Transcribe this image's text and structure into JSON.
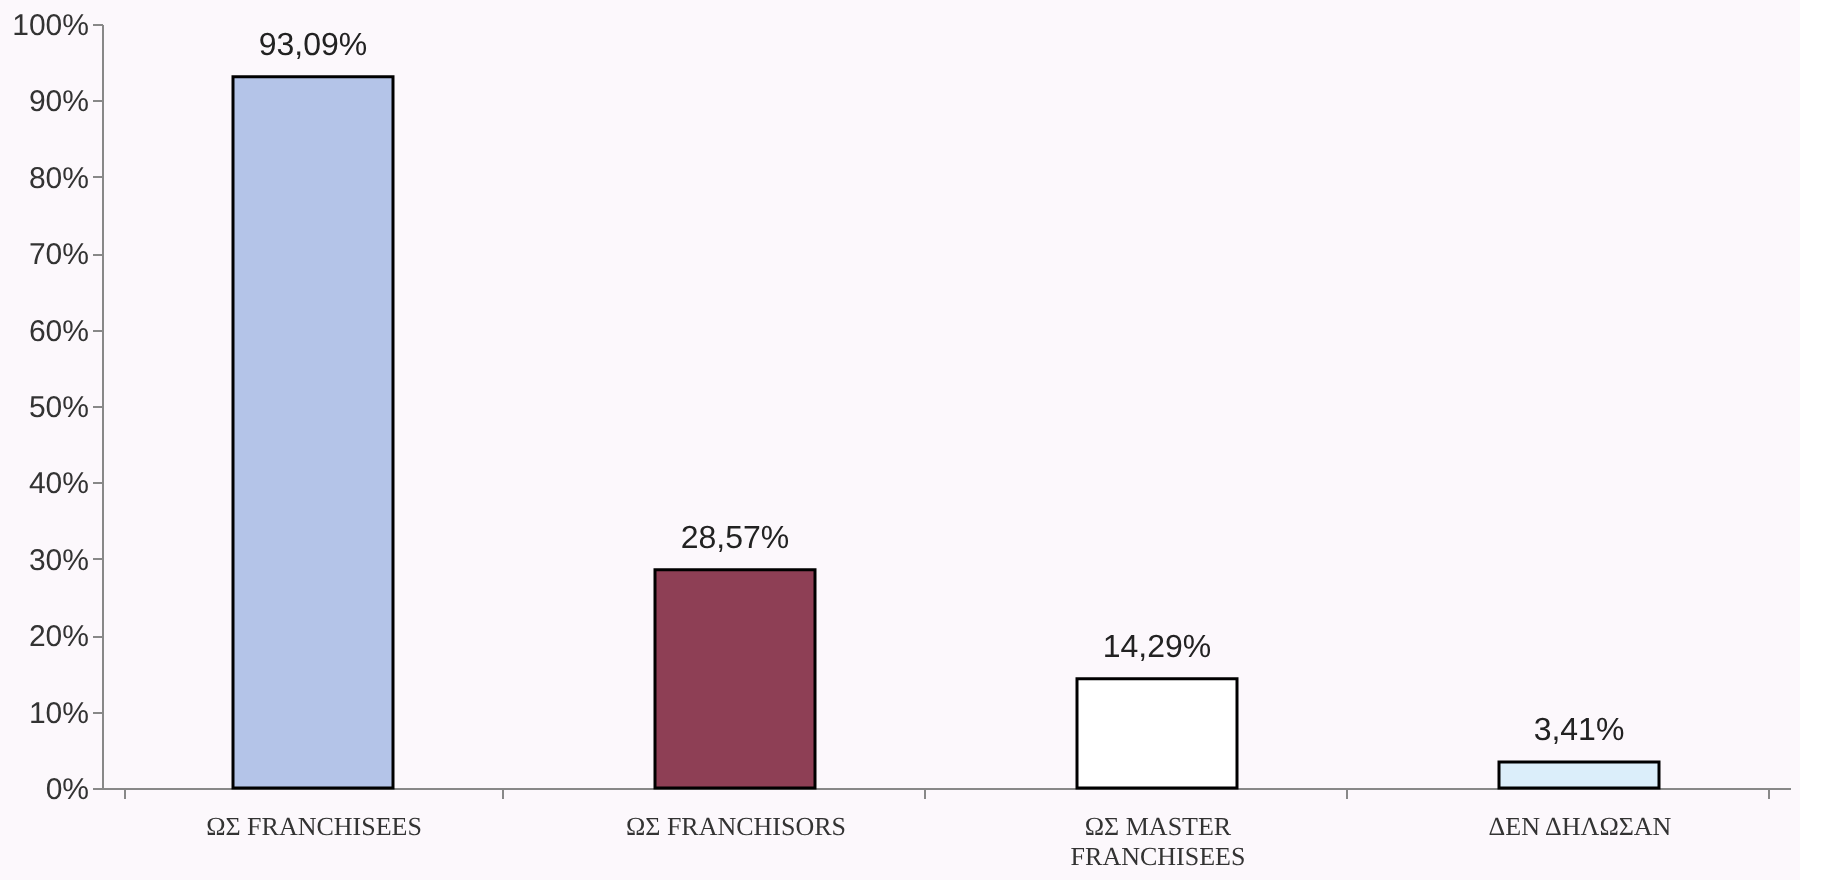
{
  "chart_data": {
    "type": "bar",
    "categories": [
      "ΩΣ FRANCHISEES",
      "ΩΣ FRANCHISORS",
      "ΩΣ MASTER FRANCHISEES",
      "ΔΕΝ ΔΗΛΩΣΑΝ"
    ],
    "values": [
      93.09,
      28.57,
      14.29,
      3.41
    ],
    "colors": [
      "#b4c4e8",
      "#8e3f55",
      "#ffffff",
      "#dbeefa"
    ],
    "value_labels": [
      "93,09%",
      "28,57%",
      "14,29%",
      "3,41%"
    ],
    "ylim": [
      0,
      100
    ],
    "yticks": [
      {
        "value": 0,
        "label": "0%"
      },
      {
        "value": 10,
        "label": "10%"
      },
      {
        "value": 20,
        "label": "20%"
      },
      {
        "value": 30,
        "label": "30%"
      },
      {
        "value": 40,
        "label": "40%"
      },
      {
        "value": 50,
        "label": "50%"
      },
      {
        "value": 60,
        "label": "60%"
      },
      {
        "value": 70,
        "label": "70%"
      },
      {
        "value": 80,
        "label": "80%"
      },
      {
        "value": 90,
        "label": "90%"
      },
      {
        "value": 100,
        "label": "100%"
      }
    ],
    "grid": false
  }
}
